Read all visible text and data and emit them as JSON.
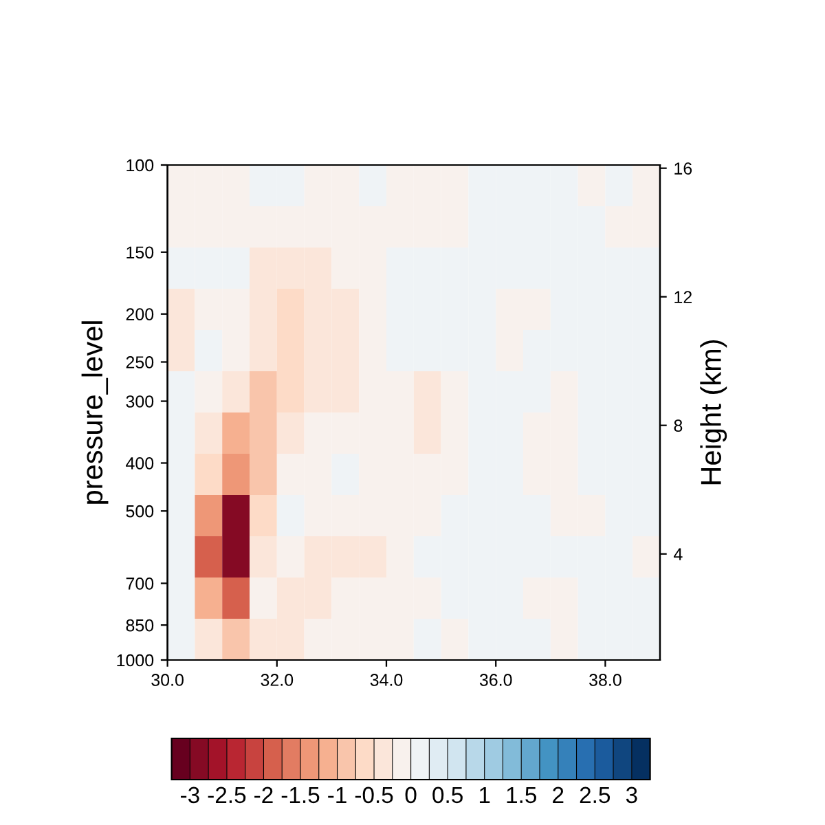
{
  "chart_data": {
    "type": "heatmap",
    "ylabel": "pressure_level",
    "y2label": "Height (km)",
    "xlim": [
      30,
      39
    ],
    "xticks": [
      {
        "value": 30,
        "label": "30.0"
      },
      {
        "value": 32,
        "label": "32.0"
      },
      {
        "value": 34,
        "label": "34.0"
      },
      {
        "value": 36,
        "label": "36.0"
      },
      {
        "value": 38,
        "label": "38.0"
      }
    ],
    "log": true,
    "ylim": [
      1000,
      100
    ],
    "yticks": [
      100,
      150,
      200,
      250,
      300,
      400,
      500,
      700,
      850,
      1000
    ],
    "y2lim": [
      0.7,
      16.1
    ],
    "y2ticks": [
      4,
      8,
      12,
      16
    ],
    "clim": [
      -3.25,
      3.25
    ],
    "cticks": [
      -3,
      -2.5,
      -2,
      -1.5,
      -1,
      -0.5,
      0,
      0.5,
      1,
      1.5,
      2,
      2.5,
      3
    ],
    "cells": [
      [
        -0.1,
        -0.1,
        -0.1,
        0.1,
        0.1,
        -0.1,
        -0.1,
        0.1,
        -0.1,
        -0.1,
        -0.1,
        0.1,
        0.1,
        0.1,
        0.1,
        -0.1,
        0.1,
        -0.1
      ],
      [
        -0.1,
        -0.1,
        -0.1,
        -0.1,
        -0.1,
        -0.1,
        -0.1,
        -0.1,
        -0.1,
        -0.1,
        -0.1,
        0.1,
        0.1,
        0.1,
        0.1,
        0.1,
        -0.1,
        -0.1
      ],
      [
        0.1,
        0.1,
        0.1,
        -0.3,
        -0.3,
        -0.3,
        -0.1,
        -0.1,
        0.1,
        0.1,
        0.1,
        0.1,
        0.1,
        0.1,
        0.1,
        0.1,
        0.1,
        0.1
      ],
      [
        -0.3,
        -0.1,
        -0.1,
        -0.3,
        -0.6,
        -0.5,
        -0.3,
        -0.1,
        0.1,
        0.1,
        0.1,
        0.1,
        -0.1,
        -0.1,
        0.1,
        0.1,
        0.1,
        0.1
      ],
      [
        -0.3,
        0.1,
        -0.1,
        -0.4,
        -0.6,
        -0.5,
        -0.4,
        -0.1,
        0.1,
        0.1,
        0.1,
        0.1,
        -0.1,
        0.1,
        0.1,
        0.1,
        0.1,
        0.1
      ],
      [
        0.1,
        -0.1,
        -0.4,
        -0.8,
        -0.6,
        -0.3,
        -0.3,
        -0.1,
        -0.1,
        -0.4,
        -0.1,
        0.1,
        0.1,
        0.1,
        -0.1,
        0.1,
        0.1,
        0.1
      ],
      [
        0.1,
        -0.3,
        -1.2,
        -1.0,
        -0.3,
        -0.1,
        -0.1,
        -0.1,
        -0.2,
        -0.4,
        -0.1,
        0.1,
        0.1,
        -0.1,
        -0.1,
        0.1,
        0.1,
        0.1
      ],
      [
        0.1,
        -0.6,
        -1.5,
        -1.0,
        -0.2,
        -0.1,
        0.1,
        -0.1,
        -0.1,
        -0.1,
        -0.1,
        0.1,
        0.1,
        -0.1,
        -0.1,
        0.1,
        0.1,
        0.1
      ],
      [
        0.1,
        -1.5,
        -2.8,
        -0.6,
        0.1,
        -0.1,
        -0.2,
        -0.2,
        -0.1,
        -0.1,
        0.1,
        0.1,
        0.1,
        0.1,
        -0.1,
        -0.1,
        0.1,
        0.1
      ],
      [
        0.1,
        -2.0,
        -2.8,
        -0.4,
        -0.2,
        -0.4,
        -0.3,
        -0.4,
        -0.1,
        0.1,
        0.1,
        0.1,
        0.1,
        0.1,
        0.1,
        0.1,
        0.1,
        -0.1
      ],
      [
        0.1,
        -1.2,
        -2.0,
        -0.2,
        -0.5,
        -0.3,
        -0.2,
        -0.1,
        -0.1,
        -0.1,
        0.1,
        0.1,
        0.1,
        -0.1,
        -0.1,
        0.1,
        0.1,
        0.2
      ],
      [
        0.1,
        -0.3,
        -1.0,
        -0.3,
        -0.5,
        -0.2,
        -0.1,
        -0.1,
        -0.1,
        0.1,
        -0.1,
        0.1,
        0.1,
        0.1,
        -0.2,
        0.1,
        0.1,
        0.2
      ]
    ]
  }
}
